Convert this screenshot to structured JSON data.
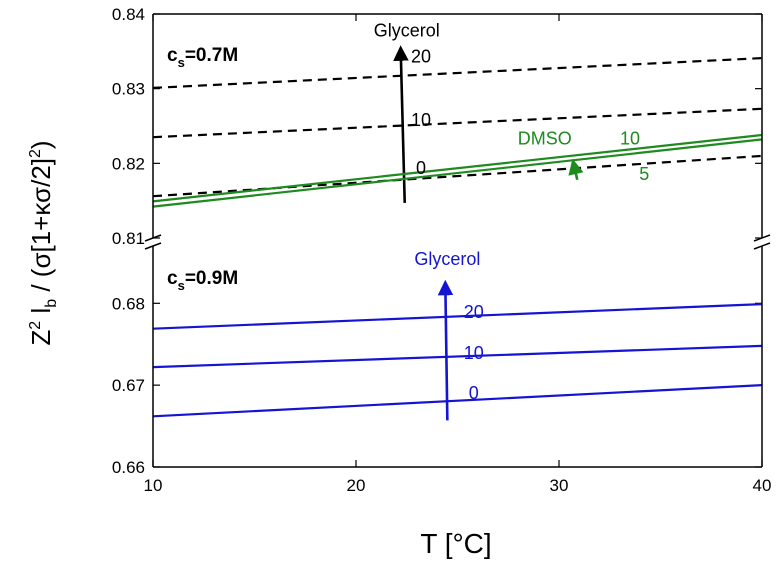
{
  "chart_data": {
    "type": "line",
    "x_axis": {
      "label": "T [°C]",
      "range": [
        10,
        40
      ],
      "ticks": [
        10,
        20,
        30,
        40
      ]
    },
    "y_axis_label": "Z² l_b / (σ[1+κσ/2]²)",
    "y_axis_label_parts": {
      "Z": "Z",
      "Z_sup": "2",
      "l": " l",
      "l_sub": "b",
      "rest": " / (σ[1+κσ/2]",
      "rest_sup": "2",
      "close": ")"
    },
    "broken_axis": true,
    "panels": [
      {
        "id": "top",
        "label_main": "c",
        "label_sub": "s",
        "label_value": "=0.7M",
        "ylim": [
          0.81,
          0.84
        ],
        "yticks": [
          0.81,
          0.82,
          0.83,
          0.84
        ],
        "tick_labels": [
          "0.81",
          "0.82",
          "0.83",
          "0.84"
        ],
        "groups": [
          {
            "name": "Glycerol",
            "color": "#000000",
            "dash": true,
            "series": [
              {
                "name": "0",
                "x": [
                  10,
                  40
                ],
                "y": [
                  0.8156,
                  0.821
                ]
              },
              {
                "name": "10",
                "x": [
                  10,
                  40
                ],
                "y": [
                  0.8235,
                  0.8273
                ]
              },
              {
                "name": "20",
                "x": [
                  10,
                  40
                ],
                "y": [
                  0.8301,
                  0.8341
                ]
              }
            ],
            "arrow": {
              "x": [
                22.4,
                22.2
              ],
              "y": [
                0.8147,
                0.8354
              ]
            }
          },
          {
            "name": "DMSO",
            "color": "#1f8a1f",
            "dash": false,
            "series": [
              {
                "name": "5",
                "x": [
                  10,
                  40
                ],
                "y": [
                  0.8142,
                  0.8232
                ]
              },
              {
                "name": "10",
                "x": [
                  10,
                  40
                ],
                "y": [
                  0.8149,
                  0.8238
                ]
              }
            ],
            "arrow": {
              "x": [
                30.9,
                30.7
              ],
              "y": [
                0.8178,
                0.8202
              ]
            }
          }
        ],
        "annotations": [
          {
            "text": "Glycerol",
            "x": 22.5,
            "y": 0.837,
            "color": "#000000"
          },
          {
            "text": "20",
            "x": 23.2,
            "y": 0.8335,
            "color": "#000000"
          },
          {
            "text": "10",
            "x": 23.2,
            "y": 0.825,
            "color": "#000000"
          },
          {
            "text": "0",
            "x": 23.2,
            "y": 0.8186,
            "color": "#000000"
          },
          {
            "text": "DMSO",
            "x": 29.3,
            "y": 0.8225,
            "color": "#1f8a1f"
          },
          {
            "text": "10",
            "x": 33.5,
            "y": 0.8225,
            "color": "#1f8a1f"
          },
          {
            "text": "5",
            "x": 34.2,
            "y": 0.8178,
            "color": "#1f8a1f"
          }
        ]
      },
      {
        "id": "bottom",
        "label_main": "c",
        "label_sub": "s",
        "label_value": "=0.9M",
        "ylim": [
          0.66,
          0.687
        ],
        "yticks": [
          0.66,
          0.67,
          0.68
        ],
        "tick_labels": [
          "0.66",
          "0.67",
          "0.68"
        ],
        "groups": [
          {
            "name": "Glycerol",
            "color": "#1414d2",
            "dash": false,
            "series": [
              {
                "name": "0",
                "x": [
                  10,
                  40
                ],
                "y": [
                  0.6662,
                  0.67
                ]
              },
              {
                "name": "10",
                "x": [
                  10,
                  40
                ],
                "y": [
                  0.6722,
                  0.6748
                ]
              },
              {
                "name": "20",
                "x": [
                  10,
                  40
                ],
                "y": [
                  0.6769,
                  0.6799
                ]
              }
            ],
            "arrow": {
              "x": [
                24.5,
                24.4
              ],
              "y": [
                0.6657,
                0.6825
              ]
            }
          }
        ],
        "annotations": [
          {
            "text": "Glycerol",
            "x": 24.5,
            "y": 0.6847,
            "color": "#1414d2"
          },
          {
            "text": "20",
            "x": 25.8,
            "y": 0.6782,
            "color": "#1414d2"
          },
          {
            "text": "10",
            "x": 25.8,
            "y": 0.6732,
            "color": "#1414d2"
          },
          {
            "text": "0",
            "x": 25.8,
            "y": 0.6683,
            "color": "#1414d2"
          }
        ]
      }
    ]
  }
}
